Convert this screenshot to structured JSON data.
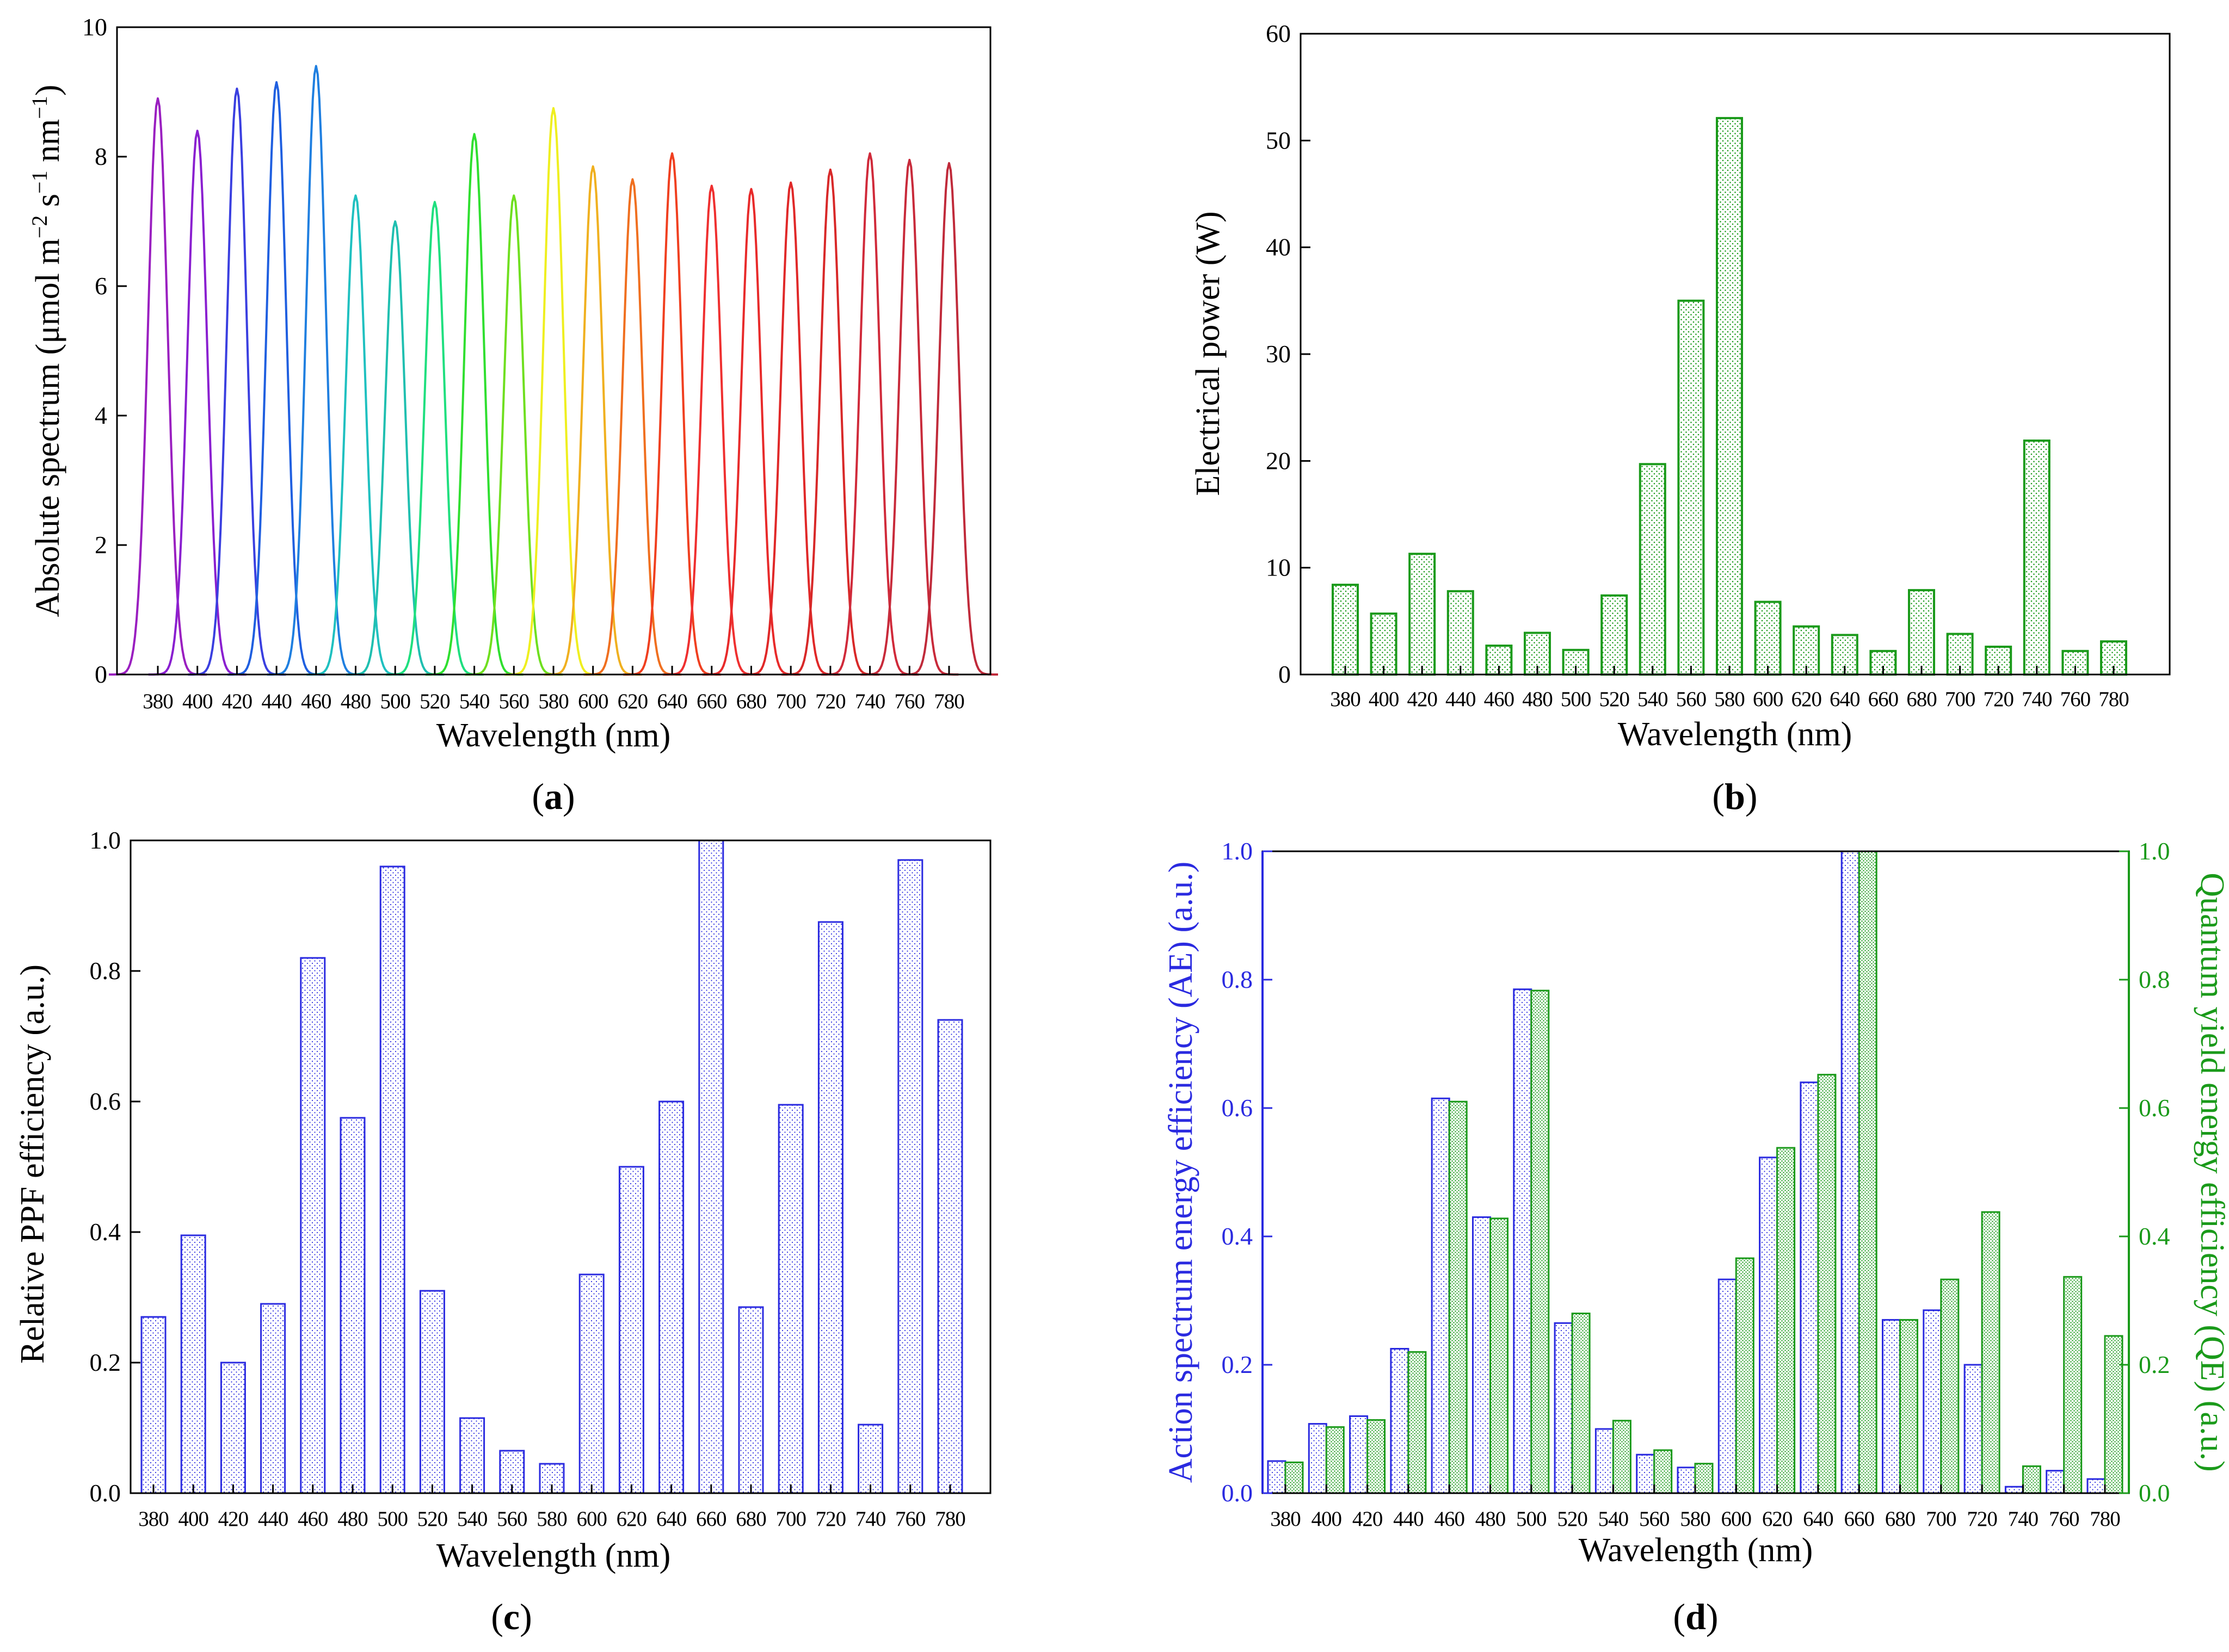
{
  "chart_data": [
    {
      "id": "a",
      "type": "line",
      "panel_label": "a",
      "xlabel": "Wavelength (nm)",
      "ylabel_parts": [
        "Absolute spectrum (μmol m",
        "−2",
        " s",
        "−1",
        " nm",
        "−1",
        ")"
      ],
      "ylim": [
        0,
        10
      ],
      "yticks": [
        "0",
        "2",
        "4",
        "6",
        "8",
        "10"
      ],
      "categories": [
        "380",
        "400",
        "420",
        "440",
        "460",
        "480",
        "500",
        "520",
        "540",
        "560",
        "580",
        "600",
        "620",
        "640",
        "660",
        "680",
        "700",
        "720",
        "740",
        "760",
        "780"
      ],
      "series": [
        {
          "name": "380",
          "peak": 8.9,
          "color": "#9A1FC0"
        },
        {
          "name": "400",
          "peak": 8.4,
          "color": "#8A1FD0"
        },
        {
          "name": "420",
          "peak": 9.05,
          "color": "#3A3FE0"
        },
        {
          "name": "440",
          "peak": 9.15,
          "color": "#1F5FE0"
        },
        {
          "name": "460",
          "peak": 9.4,
          "color": "#1F7FE0"
        },
        {
          "name": "480",
          "peak": 7.4,
          "color": "#1FC0C0"
        },
        {
          "name": "500",
          "peak": 7.0,
          "color": "#1FBFB0"
        },
        {
          "name": "520",
          "peak": 7.3,
          "color": "#1FDF7F"
        },
        {
          "name": "540",
          "peak": 8.35,
          "color": "#2FDF2F"
        },
        {
          "name": "560",
          "peak": 7.4,
          "color": "#6FDF1F"
        },
        {
          "name": "580",
          "peak": 8.75,
          "color": "#EFEF1F"
        },
        {
          "name": "600",
          "peak": 7.85,
          "color": "#F0B01F"
        },
        {
          "name": "620",
          "peak": 7.65,
          "color": "#F06F1F"
        },
        {
          "name": "640",
          "peak": 8.05,
          "color": "#F03F1F"
        },
        {
          "name": "660",
          "peak": 7.55,
          "color": "#EF2F2F"
        },
        {
          "name": "680",
          "peak": 7.5,
          "color": "#E82A2A"
        },
        {
          "name": "700",
          "peak": 7.6,
          "color": "#E02828"
        },
        {
          "name": "720",
          "peak": 7.8,
          "color": "#D82828"
        },
        {
          "name": "740",
          "peak": 8.05,
          "color": "#D02A3A"
        },
        {
          "name": "760",
          "peak": 7.95,
          "color": "#C82A3A"
        },
        {
          "name": "780",
          "peak": 7.9,
          "color": "#C02A3A"
        }
      ]
    },
    {
      "id": "b",
      "type": "bar",
      "panel_label": "b",
      "xlabel": "Wavelength (nm)",
      "ylabel": "Electrical power (W)",
      "ylim": [
        0,
        60
      ],
      "yticks": [
        "0",
        "10",
        "20",
        "30",
        "40",
        "50",
        "60"
      ],
      "categories": [
        "380",
        "400",
        "420",
        "440",
        "460",
        "480",
        "500",
        "520",
        "540",
        "560",
        "580",
        "600",
        "620",
        "640",
        "660",
        "680",
        "700",
        "720",
        "740",
        "760",
        "780"
      ],
      "values": [
        8.4,
        5.7,
        11.3,
        7.8,
        2.7,
        3.9,
        2.3,
        7.4,
        19.7,
        35.0,
        52.1,
        6.8,
        4.5,
        3.7,
        2.2,
        7.9,
        3.8,
        2.6,
        21.9,
        2.2,
        3.1
      ],
      "color": "#1A9A1A"
    },
    {
      "id": "c",
      "type": "bar",
      "panel_label": "c",
      "xlabel": "Wavelength (nm)",
      "ylabel": "Relative PPF efficiency (a.u.)",
      "ylim": [
        0,
        1.0
      ],
      "yticks": [
        "0.0",
        "0.2",
        "0.4",
        "0.6",
        "0.8",
        "1.0"
      ],
      "categories": [
        "380",
        "400",
        "420",
        "440",
        "460",
        "480",
        "500",
        "520",
        "540",
        "560",
        "580",
        "600",
        "620",
        "640",
        "660",
        "680",
        "700",
        "720",
        "740",
        "760",
        "780"
      ],
      "values": [
        0.27,
        0.395,
        0.2,
        0.29,
        0.82,
        0.575,
        0.96,
        0.31,
        0.115,
        0.065,
        0.045,
        0.335,
        0.5,
        0.6,
        1.0,
        0.285,
        0.595,
        0.875,
        0.105,
        0.97,
        0.725
      ],
      "color": "#2A2AE0"
    },
    {
      "id": "d",
      "type": "bar",
      "panel_label": "d",
      "xlabel": "Wavelength (nm)",
      "ylabel_left": "Action spectrum energy efficiency (AE) (a.u.)",
      "ylabel_right": "Quantum yield energy efficiency (QE) (a.u.)",
      "ylim": [
        0,
        1.0
      ],
      "yticks": [
        "0.0",
        "0.2",
        "0.4",
        "0.6",
        "0.8",
        "1.0"
      ],
      "categories": [
        "380",
        "400",
        "420",
        "440",
        "460",
        "480",
        "500",
        "520",
        "540",
        "560",
        "580",
        "600",
        "620",
        "640",
        "660",
        "680",
        "700",
        "720",
        "740",
        "760",
        "780"
      ],
      "series": [
        {
          "name": "AE",
          "color": "#2A2AE0",
          "values": [
            0.05,
            0.108,
            0.12,
            0.225,
            0.615,
            0.43,
            0.785,
            0.265,
            0.1,
            0.06,
            0.04,
            0.333,
            0.523,
            0.64,
            1.0,
            0.27,
            0.285,
            0.2,
            0.01,
            0.035,
            0.022
          ]
        },
        {
          "name": "QE",
          "color": "#1A9A1A",
          "values": [
            0.048,
            0.103,
            0.114,
            0.22,
            0.61,
            0.428,
            0.783,
            0.28,
            0.113,
            0.067,
            0.046,
            0.366,
            0.538,
            0.652,
            1.0,
            0.27,
            0.333,
            0.438,
            0.042,
            0.337,
            0.245
          ]
        }
      ]
    }
  ]
}
